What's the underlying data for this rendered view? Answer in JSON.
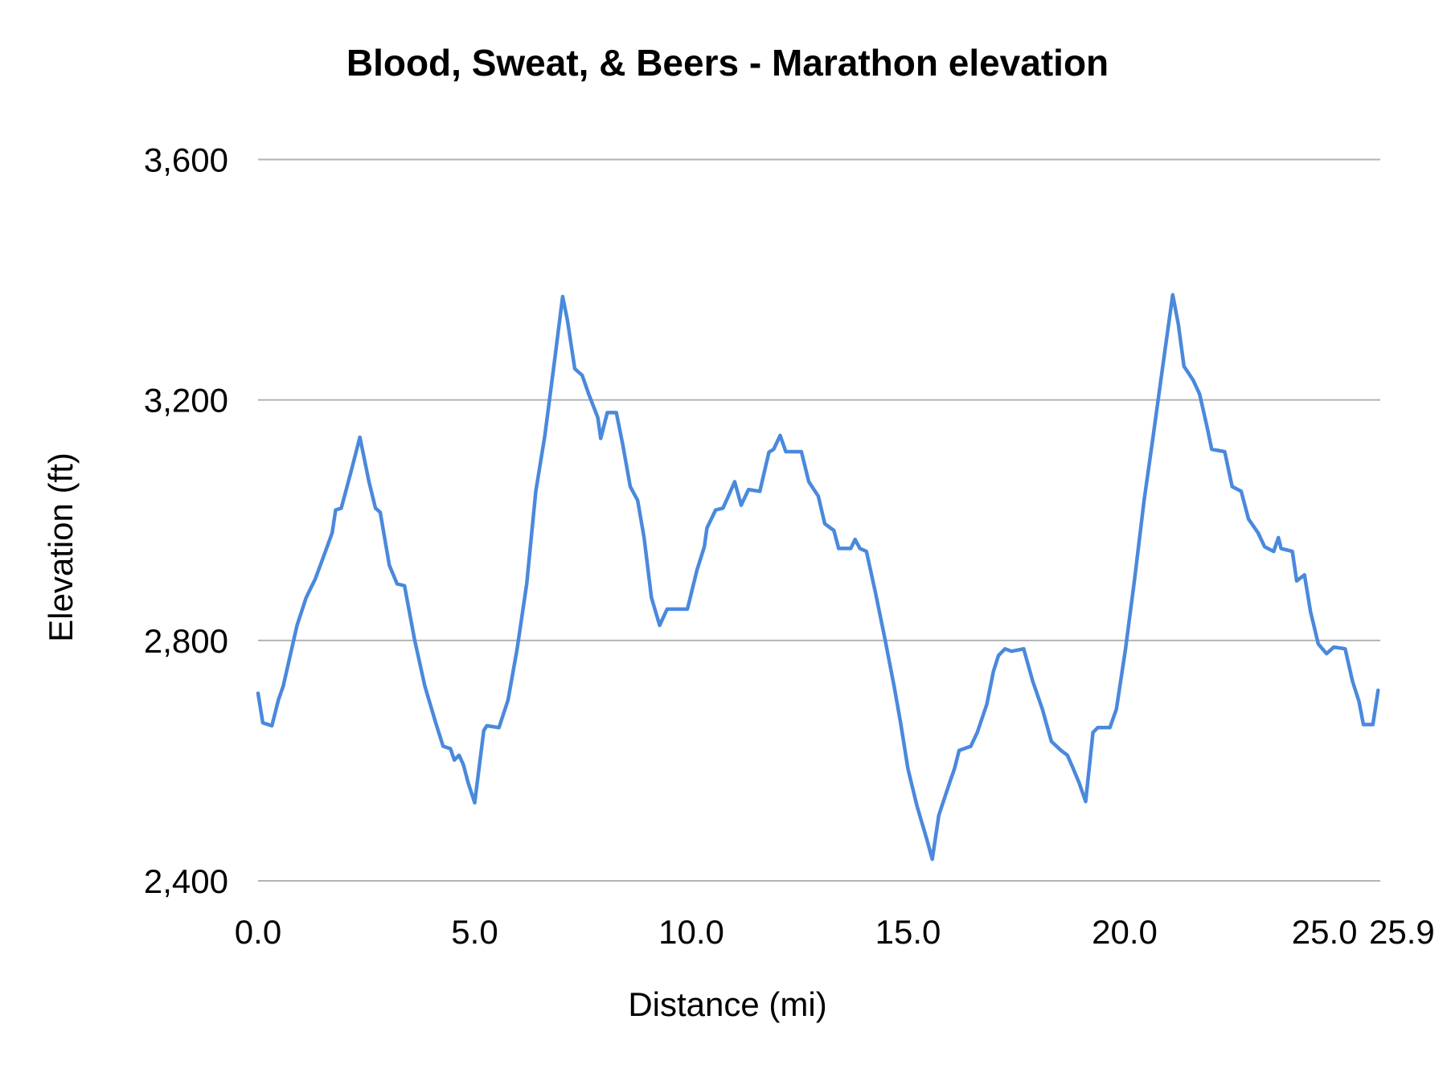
{
  "chart_data": {
    "type": "line",
    "title": "Blood, Sweat, & Beers  - Marathon elevation",
    "xlabel": "Distance (mi)",
    "ylabel": "Elevation (ft)",
    "xlim": [
      0,
      25.9
    ],
    "ylim": [
      2400,
      3600
    ],
    "x_ticks": [
      0,
      5,
      10,
      15,
      20,
      25,
      25.9
    ],
    "x_tick_labels": [
      "0.0",
      "5.0",
      "10.0",
      "15.0",
      "20.0",
      "25.0",
      "25.9"
    ],
    "y_ticks": [
      2400,
      2800,
      3200,
      3600
    ],
    "y_tick_labels": [
      "2,400",
      "2,800",
      "3,200",
      "3,600"
    ],
    "grid": "horizontal",
    "legend": "none",
    "colors": {
      "line": "#4a89dc",
      "grid": "#b3b3b3"
    },
    "x": [
      0,
      0.11,
      0.32,
      0.47,
      0.58,
      0.9,
      1.11,
      1.32,
      1.54,
      1.71,
      1.79,
      1.92,
      2.14,
      2.35,
      2.56,
      2.71,
      2.82,
      3.03,
      3.21,
      3.38,
      3.61,
      3.85,
      4.1,
      4.27,
      4.44,
      4.53,
      4.64,
      4.74,
      4.85,
      5.0,
      5.21,
      5.28,
      5.56,
      5.77,
      5.98,
      6.2,
      6.41,
      6.62,
      6.84,
      7.03,
      7.14,
      7.31,
      7.48,
      7.63,
      7.84,
      7.91,
      8.06,
      8.27,
      8.42,
      8.59,
      8.76,
      8.91,
      9.08,
      9.27,
      9.44,
      9.91,
      10.13,
      10.3,
      10.36,
      10.56,
      10.73,
      10.83,
      11.0,
      11.15,
      11.32,
      11.58,
      11.79,
      11.9,
      12.05,
      12.18,
      12.54,
      12.71,
      12.93,
      13.08,
      13.29,
      13.4,
      13.68,
      13.78,
      13.89,
      14.04,
      14.25,
      14.47,
      14.68,
      14.83,
      15.0,
      15.21,
      15.43,
      15.56,
      15.71,
      15.96,
      16.07,
      16.18,
      16.45,
      16.6,
      16.82,
      16.97,
      17.09,
      17.24,
      17.39,
      17.67,
      17.88,
      18.1,
      18.31,
      18.53,
      18.68,
      18.8,
      18.95,
      19.1,
      19.27,
      19.38,
      19.66,
      19.81,
      20.02,
      20.23,
      20.45,
      20.66,
      20.88,
      21.11,
      21.24,
      21.37,
      21.58,
      21.73,
      21.9,
      22.01,
      22.31,
      22.48,
      22.69,
      22.86,
      23.08,
      23.23,
      23.44,
      23.55,
      23.61,
      23.87,
      23.97,
      24.15,
      24.29,
      24.47,
      24.66,
      24.83,
      25.09,
      25.26,
      25.41,
      25.51,
      25.73,
      25.85
    ],
    "series": [
      {
        "values": [
          2712,
          2663,
          2658,
          2701,
          2724,
          2825,
          2871,
          2902,
          2945,
          2979,
          3017,
          3020,
          3079,
          3138,
          3064,
          3020,
          3013,
          2925,
          2894,
          2891,
          2802,
          2724,
          2663,
          2624,
          2620,
          2601,
          2609,
          2593,
          2563,
          2530,
          2650,
          2658,
          2655,
          2701,
          2786,
          2894,
          3048,
          3141,
          3264,
          3372,
          3333,
          3252,
          3241,
          3210,
          3171,
          3136,
          3179,
          3179,
          3125,
          3056,
          3033,
          2971,
          2871,
          2825,
          2852,
          2852,
          2917,
          2956,
          2987,
          3017,
          3020,
          3036,
          3064,
          3025,
          3051,
          3048,
          3113,
          3118,
          3141,
          3114,
          3114,
          3064,
          3040,
          2994,
          2983,
          2953,
          2953,
          2968,
          2953,
          2948,
          2879,
          2802,
          2724,
          2663,
          2586,
          2524,
          2470,
          2436,
          2509,
          2563,
          2586,
          2617,
          2624,
          2647,
          2694,
          2748,
          2775,
          2786,
          2782,
          2786,
          2732,
          2686,
          2632,
          2617,
          2609,
          2589,
          2563,
          2532,
          2647,
          2655,
          2655,
          2686,
          2786,
          2902,
          3033,
          3141,
          3256,
          3375,
          3326,
          3256,
          3233,
          3210,
          3156,
          3118,
          3114,
          3056,
          3048,
          3002,
          2979,
          2956,
          2948,
          2971,
          2953,
          2948,
          2899,
          2909,
          2848,
          2794,
          2778,
          2789,
          2786,
          2732,
          2698,
          2660,
          2660,
          2717
        ]
      }
    ]
  }
}
